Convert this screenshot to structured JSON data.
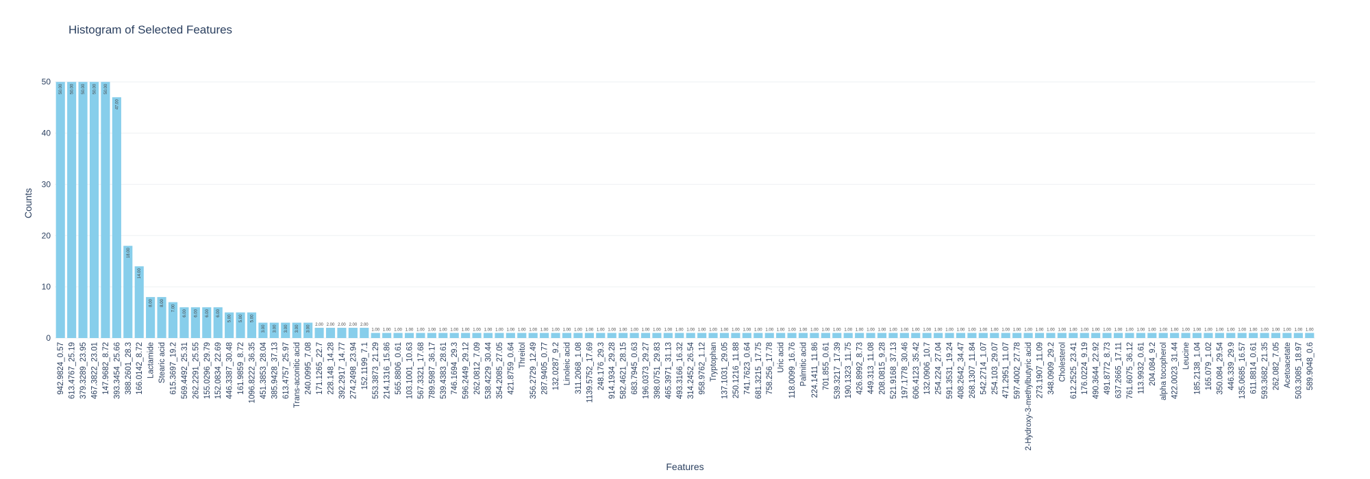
{
  "chart_data": {
    "type": "bar",
    "title": "Histogram of Selected Features",
    "xlabel": "Features",
    "ylabel": "Counts",
    "color": "#87ceeb",
    "grid": true,
    "ylim": [
      0,
      52.63
    ],
    "yticks": [
      0,
      10,
      20,
      30,
      40,
      50
    ],
    "categories": [
      "942.9824_0.57",
      "613.4767_25.19",
      "379.3289_23.95",
      "467.3822_23.01",
      "147.9682_8.72",
      "393.3454_25.66",
      "388.2601_28.3",
      "166.0142_8.72",
      "Lactamide",
      "Stearic acid",
      "615.3697_19.2",
      "569.4492_25.31",
      "262.2291_25.55",
      "155.0296_29.79",
      "152.0834_22.69",
      "446.3387_30.48",
      "161.9859_8.72",
      "1096.8222_36.35",
      "451.3853_28.04",
      "385.9428_37.13",
      "613.4757_25.97",
      "Trans-aconitic acid",
      "240.0995_7.08",
      "171.1265_22.7",
      "228.148_14.28",
      "392.2917_14.77",
      "274.2498_23.94",
      "152.1199_7.1",
      "553.3873_21.29",
      "214.1316_15.86",
      "565.8806_0.61",
      "103.1001_10.63",
      "567.3321_17.68",
      "789.5987_36.17",
      "539.4383_28.61",
      "746.1694_29.3",
      "596.2449_29.12",
      "262.0812_7.09",
      "538.4229_30.44",
      "354.2085_27.05",
      "421.8759_0.64",
      "Threitol",
      "356.2729_12.49",
      "287.9405_0.77",
      "132.0287_9.2",
      "Linoleic acid",
      "311.2068_1.08",
      "1139.5752_17.69",
      "248.176_29.3",
      "914.1934_29.28",
      "582.4621_28.15",
      "683.7945_0.63",
      "196.0373_29.27",
      "398.0751_29.83",
      "465.3971_31.13",
      "493.3166_16.32",
      "314.2452_26.54",
      "958.9762_1.12",
      "Tryptophan",
      "137.1031_29.05",
      "250.1216_11.88",
      "741.7623_0.64",
      "681.3215_17.75",
      "758.256_17.78",
      "Uric acid",
      "118.0099_16.76",
      "Palmitic acid",
      "224.1411_11.86",
      "701.855_0.61",
      "539.3217_17.39",
      "190.1323_11.75",
      "426.8992_8.73",
      "449.313_11.08",
      "208.0815_9.28",
      "521.9168_37.13",
      "197.1778_30.46",
      "606.4123_35.42",
      "132.0906_10.7",
      "254.224_27.04",
      "591.3531_19.24",
      "408.2642_34.47",
      "268.1307_11.84",
      "542.2714_1.07",
      "254.103_29.07",
      "471.2951_11.07",
      "597.4002_27.78",
      "2-Hydroxy-3-methylbutyric acid",
      "273.1907_11.09",
      "348.0909_29.2",
      "Cholesterol",
      "612.2525_23.41",
      "176.0224_9.19",
      "490.3644_22.92",
      "491.8772_8.73",
      "637.2665_17.11",
      "761.6075_36.12",
      "113.9932_0.61",
      "204.084_9.2",
      "alpha tocopherol",
      "422.0023_31.44",
      "Leucine",
      "185.2138_1.04",
      "165.079_1.02",
      "350.084_29.54",
      "446.339_29.9",
      "135.0685_16.57",
      "611.8814_0.61",
      "593.3682_21.35",
      "262.082_7.05",
      "Acetoacetate",
      "503.3085_18.97",
      "589.9048_0.6"
    ],
    "values": [
      50,
      50,
      50,
      50,
      50,
      47,
      18,
      14,
      8,
      8,
      7,
      6,
      6,
      6,
      6,
      5,
      5,
      5,
      3,
      3,
      3,
      3,
      3,
      2,
      2,
      2,
      2,
      2,
      1,
      1,
      1,
      1,
      1,
      1,
      1,
      1,
      1,
      1,
      1,
      1,
      1,
      1,
      1,
      1,
      1,
      1,
      1,
      1,
      1,
      1,
      1,
      1,
      1,
      1,
      1,
      1,
      1,
      1,
      1,
      1,
      1,
      1,
      1,
      1,
      1,
      1,
      1,
      1,
      1,
      1,
      1,
      1,
      1,
      1,
      1,
      1,
      1,
      1,
      1,
      1,
      1,
      1,
      1,
      1,
      1,
      1,
      1,
      1,
      1,
      1,
      1,
      1,
      1,
      1,
      1,
      1,
      1,
      1,
      1,
      1,
      1,
      1,
      1,
      1,
      1,
      1,
      1,
      1,
      1,
      1,
      1,
      1
    ],
    "value_labels": [
      "50.00",
      "50.00",
      "50.00",
      "50.00",
      "50.00",
      "47.00",
      "18.00",
      "14.00",
      "8.00",
      "8.00",
      "7.00",
      "6.00",
      "6.00",
      "6.00",
      "6.00",
      "5.00",
      "5.00",
      "5.00",
      "3.00",
      "3.00",
      "3.00",
      "3.00",
      "3.00",
      "2.00",
      "2.00",
      "2.00",
      "2.00",
      "2.00",
      "1.00",
      "1.00",
      "1.00",
      "1.00",
      "1.00",
      "1.00",
      "1.00",
      "1.00",
      "1.00",
      "1.00",
      "1.00",
      "1.00",
      "1.00",
      "1.00",
      "1.00",
      "1.00",
      "1.00",
      "1.00",
      "1.00",
      "1.00",
      "1.00",
      "1.00",
      "1.00",
      "1.00",
      "1.00",
      "1.00",
      "1.00",
      "1.00",
      "1.00",
      "1.00",
      "1.00",
      "1.00",
      "1.00",
      "1.00",
      "1.00",
      "1.00",
      "1.00",
      "1.00",
      "1.00",
      "1.00",
      "1.00",
      "1.00",
      "1.00",
      "1.00",
      "1.00",
      "1.00",
      "1.00",
      "1.00",
      "1.00",
      "1.00",
      "1.00",
      "1.00",
      "1.00",
      "1.00",
      "1.00",
      "1.00",
      "1.00",
      "1.00",
      "1.00",
      "1.00",
      "1.00",
      "1.00",
      "1.00",
      "1.00",
      "1.00",
      "1.00",
      "1.00",
      "1.00",
      "1.00",
      "1.00",
      "1.00",
      "1.00",
      "1.00",
      "1.00",
      "1.00",
      "1.00",
      "1.00",
      "1.00",
      "1.00",
      "1.00",
      "1.00",
      "1.00",
      "1.00",
      "1.00"
    ]
  }
}
